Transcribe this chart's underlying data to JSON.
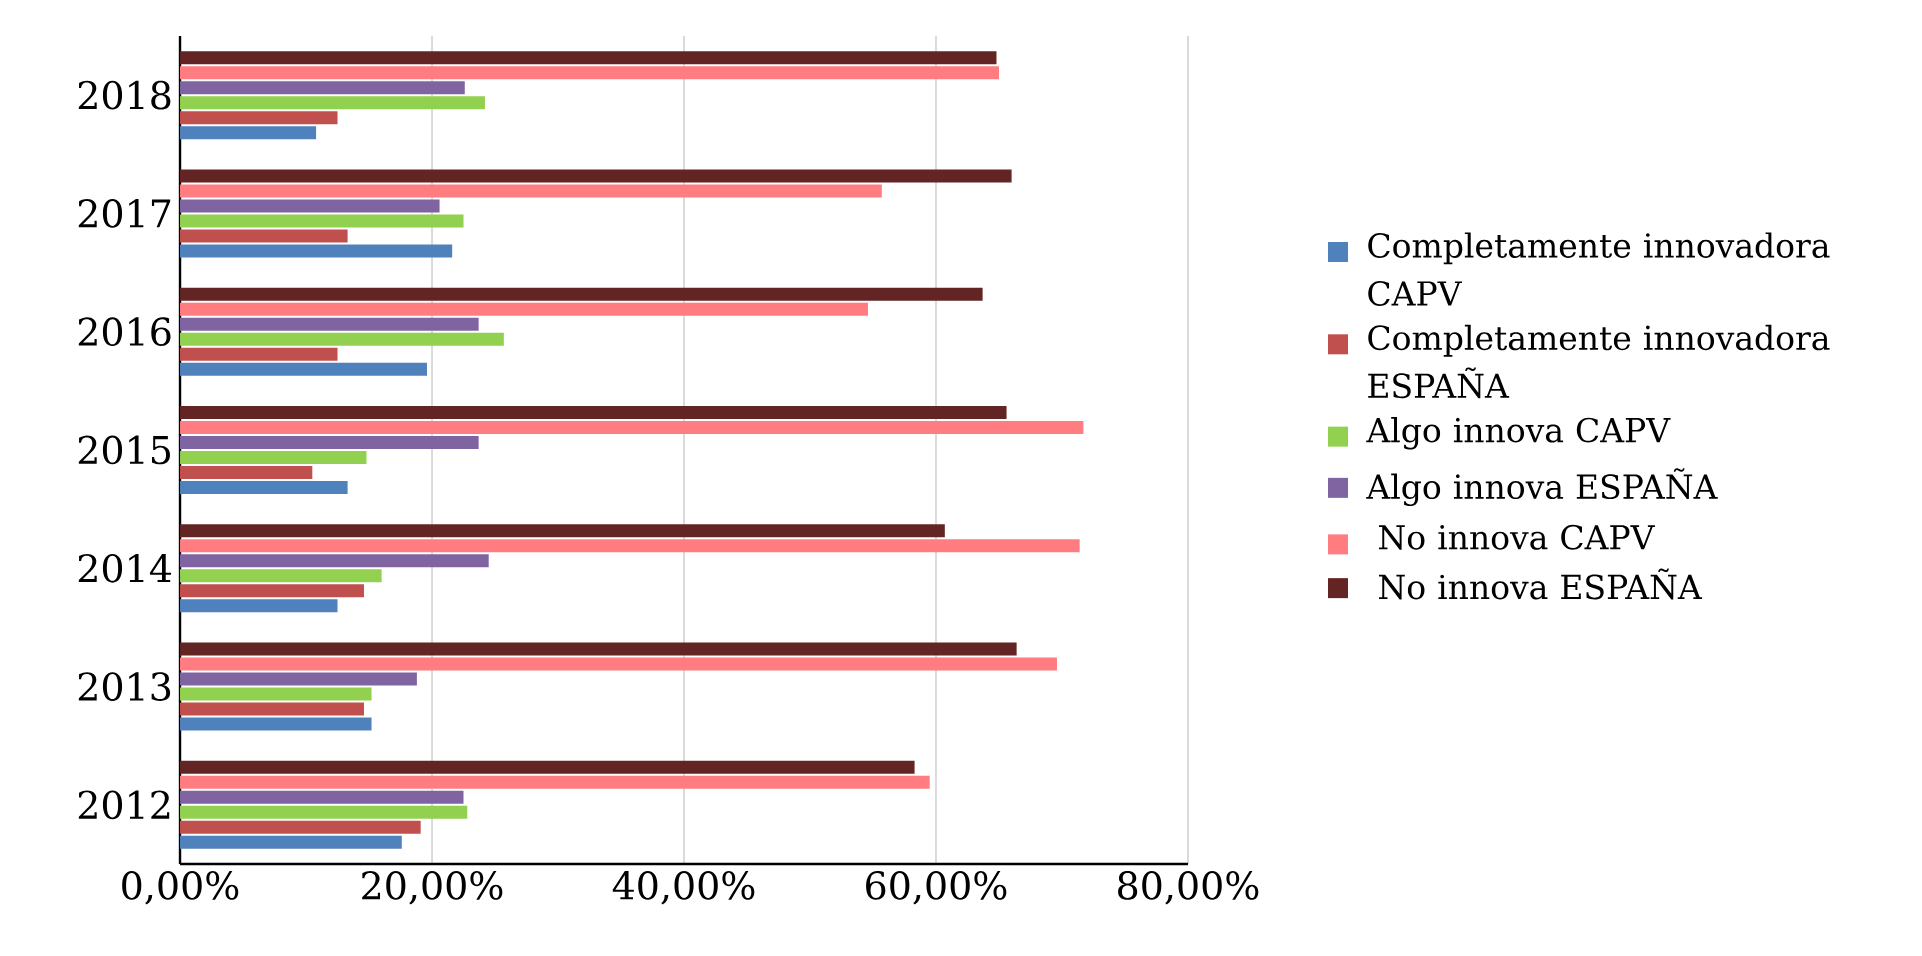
{
  "chart_data": {
    "type": "bar",
    "orientation": "horizontal",
    "categories": [
      "2018",
      "2017",
      "2016",
      "2015",
      "2014",
      "2013",
      "2012"
    ],
    "series": [
      {
        "name": "Completamente innovadora CAPV",
        "color": "#4f81bd",
        "values": [
          10.8,
          21.6,
          19.6,
          13.3,
          12.5,
          15.2,
          17.6
        ]
      },
      {
        "name": "Completamente innovadora ESPAÑA",
        "color": "#c0504d",
        "values": [
          12.5,
          13.3,
          12.5,
          10.5,
          14.6,
          14.6,
          19.1
        ]
      },
      {
        "name": "Algo innova CAPV",
        "color": "#92d050",
        "values": [
          24.2,
          22.5,
          25.7,
          14.8,
          16.0,
          15.2,
          22.8
        ]
      },
      {
        "name": "Algo innova ESPAÑA",
        "color": "#8064a2",
        "values": [
          22.6,
          20.6,
          23.7,
          23.7,
          24.5,
          18.8,
          22.5
        ]
      },
      {
        "name": " No innova CAPV",
        "color": "#ff7c80",
        "values": [
          65.0,
          55.7,
          54.6,
          71.7,
          71.4,
          69.6,
          59.5
        ]
      },
      {
        "name": " No innova ESPAÑA",
        "color": "#632523",
        "values": [
          64.8,
          66.0,
          63.7,
          65.6,
          60.7,
          66.4,
          58.3
        ]
      }
    ],
    "xlim": [
      0,
      80
    ],
    "xticks": [
      {
        "value": 0,
        "label": "0,00%"
      },
      {
        "value": 20,
        "label": "20,00%"
      },
      {
        "value": 40,
        "label": "40,00%"
      },
      {
        "value": 60,
        "label": "60,00%"
      },
      {
        "value": 80,
        "label": "80,00%"
      }
    ],
    "grid": "x",
    "legend": "right"
  }
}
